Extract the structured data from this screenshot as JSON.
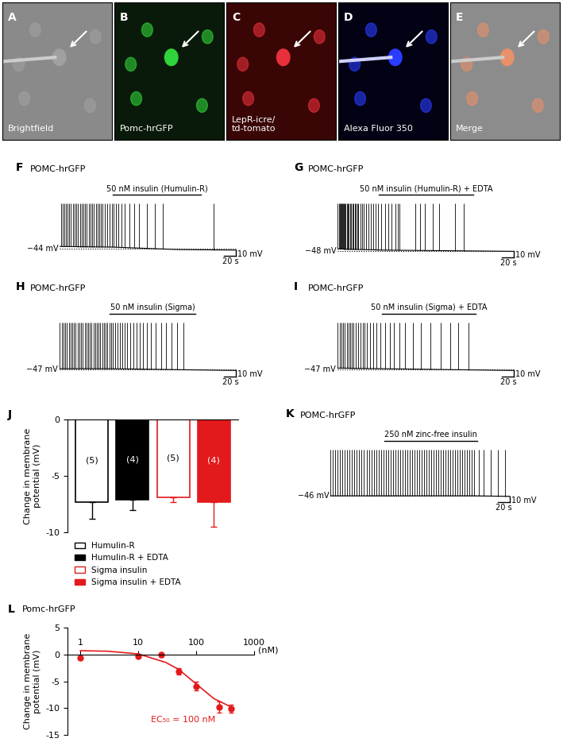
{
  "images": [
    {
      "letter": "A",
      "label": "Brightfield",
      "color": "#8a8a8a",
      "cell_color": "#a0a0a0"
    },
    {
      "letter": "B",
      "label": "Pomc-hrGFP",
      "color": "#0a1a0a",
      "cell_color": "#2fd43a"
    },
    {
      "letter": "C",
      "label": "LepR-icre/\ntd-tomato",
      "color": "#3a0505",
      "cell_color": "#e8303a"
    },
    {
      "letter": "D",
      "label": "Alexa Fluor 350",
      "color": "#020214",
      "cell_color": "#2a3cff"
    },
    {
      "letter": "E",
      "label": "Merge",
      "color": "#8c8c8c",
      "cell_color": "#e8906a"
    }
  ],
  "traces": [
    {
      "letter": "F",
      "title": "POMC-hrGFP",
      "drug": "50 nM insulin (Humulin-R)",
      "drug_on_s": 90,
      "drug_off_s": 240,
      "duration_s": 300,
      "baseline_mv": -44,
      "baseline_label": "−44 mV",
      "v_points": [
        [
          0,
          -41
        ],
        [
          90,
          -42
        ],
        [
          200,
          -46
        ],
        [
          300,
          -47
        ]
      ],
      "spike_peak_mv": 30,
      "spike_times_s": [
        2,
        5,
        8,
        10,
        13,
        16,
        19,
        22,
        25,
        28,
        31,
        34,
        37,
        40,
        43,
        46,
        49,
        52,
        55,
        58,
        61,
        64,
        67,
        70,
        73,
        76,
        80,
        84,
        88,
        92,
        96,
        100,
        105,
        110,
        118,
        126,
        135,
        148,
        162,
        175,
        262
      ],
      "scale_mv": 10,
      "scale_mv_label": "10 mV",
      "scale_s": 20,
      "scale_s_label": "20 s"
    },
    {
      "letter": "G",
      "title": "POMC-hrGFP",
      "drug": "50 nM insulin (Humulin-R) + EDTA",
      "drug_on_s": 70,
      "drug_off_s": 230,
      "duration_s": 300,
      "baseline_mv": -48,
      "baseline_label": "−48 mV",
      "v_points": [
        [
          0,
          -45
        ],
        [
          80,
          -47
        ],
        [
          300,
          -49
        ]
      ],
      "spike_peak_mv": 30,
      "spike_times_s": [
        0,
        1.5,
        3,
        4.5,
        6,
        7.5,
        9,
        10.5,
        12,
        13.5,
        15,
        17,
        19,
        21,
        23,
        25,
        27,
        29,
        31,
        33,
        35,
        38,
        41,
        44,
        48,
        52,
        56,
        60,
        64,
        69,
        74,
        80,
        86,
        92,
        98,
        102,
        105,
        132,
        140,
        148,
        162,
        172,
        200,
        215
      ],
      "scale_mv": 10,
      "scale_mv_label": "10 mV",
      "scale_s": 20,
      "scale_s_label": "20 s"
    },
    {
      "letter": "H",
      "title": "POMC-hrGFP",
      "drug": "50 nM insulin (Sigma)",
      "drug_on_s": 85,
      "drug_off_s": 230,
      "duration_s": 300,
      "baseline_mv": -47,
      "baseline_label": "−47 mV",
      "v_points": [
        [
          0,
          -46
        ],
        [
          90,
          -46
        ],
        [
          300,
          -49
        ]
      ],
      "spike_peak_mv": 30,
      "spike_times_s": [
        0,
        3,
        6,
        9,
        12,
        15,
        18,
        21,
        24,
        27,
        30,
        33,
        36,
        39,
        42,
        45,
        48,
        51,
        54,
        57,
        60,
        63,
        66,
        69,
        72,
        75,
        78,
        81,
        84,
        87,
        90,
        94,
        98,
        102,
        106,
        110,
        115,
        120,
        125,
        130,
        136,
        142,
        148,
        155,
        163,
        172,
        180,
        190,
        200,
        210
      ],
      "scale_mv": 10,
      "scale_mv_label": "10 mV",
      "scale_s": 20,
      "scale_s_label": "20 s"
    },
    {
      "letter": "I",
      "title": "POMC-hrGFP",
      "drug": "50 nM insulin (Sigma) + EDTA",
      "drug_on_s": 75,
      "drug_off_s": 235,
      "duration_s": 300,
      "baseline_mv": -47,
      "baseline_label": "−47 mV",
      "v_points": [
        [
          0,
          -45
        ],
        [
          80,
          -46
        ],
        [
          300,
          -49
        ]
      ],
      "spike_peak_mv": 30,
      "spike_times_s": [
        0,
        3,
        6,
        9,
        12,
        15,
        18,
        21,
        24,
        27,
        30,
        34,
        38,
        42,
        46,
        50,
        55,
        60,
        66,
        72,
        80,
        88,
        96,
        105,
        115,
        128,
        142,
        158,
        175,
        192,
        205,
        222
      ],
      "scale_mv": 10,
      "scale_mv_label": "10 mV",
      "scale_s": 20,
      "scale_s_label": "20 s"
    },
    {
      "letter": "K",
      "title": "POMC-hrGFP",
      "drug": "250 nM zinc-free insulin",
      "drug_on_s": 90,
      "drug_off_s": 245,
      "duration_s": 300,
      "baseline_mv": -46,
      "baseline_label": "−46 mV",
      "v_points": [
        [
          0,
          -46
        ],
        [
          240,
          -46
        ],
        [
          300,
          -47
        ]
      ],
      "spike_peak_mv": 30,
      "spike_times_s": [
        0,
        4,
        8,
        12,
        16,
        20,
        24,
        28,
        32,
        36,
        40,
        44,
        48,
        52,
        56,
        60,
        64,
        68,
        72,
        76,
        80,
        84,
        88,
        92,
        96,
        100,
        104,
        108,
        112,
        116,
        120,
        124,
        128,
        132,
        136,
        140,
        144,
        148,
        152,
        156,
        160,
        164,
        168,
        172,
        176,
        180,
        184,
        188,
        192,
        196,
        200,
        204,
        208,
        212,
        216,
        220,
        224,
        228,
        232,
        236,
        240,
        248,
        256,
        268,
        280,
        292
      ],
      "scale_mv": 10,
      "scale_mv_label": "10 mV",
      "scale_s": 20,
      "scale_s_label": "20 s"
    }
  ],
  "chart_data": [
    {
      "letter": "J",
      "type": "bar",
      "y_label": "Change in membrane\npotential (mV)",
      "ylim": [
        -10,
        0
      ],
      "yticks": [
        -10,
        -5,
        0
      ],
      "legend": "upper left",
      "series": [
        {
          "name": "Humulin-R",
          "color": "#000000",
          "marker": "open",
          "values": [
            -7.3
          ],
          "errors": [
            1.5
          ],
          "n_labels": [
            "(5)"
          ]
        },
        {
          "name": "Humulin-R + EDTA",
          "color": "#000000",
          "marker": "filled",
          "values": [
            -7.1
          ],
          "errors": [
            0.9
          ],
          "n_labels": [
            "(4)"
          ]
        },
        {
          "name": "Sigma insulin",
          "color": "#e31a1c",
          "marker": "open",
          "values": [
            -6.9
          ],
          "errors": [
            0.4
          ],
          "n_labels": [
            "(5)"
          ]
        },
        {
          "name": "Sigma insulin + EDTA",
          "color": "#e31a1c",
          "marker": "filled",
          "values": [
            -7.3
          ],
          "errors": [
            2.2
          ],
          "n_labels": [
            "(4)"
          ]
        }
      ]
    },
    {
      "letter": "L",
      "type": "scatter",
      "title": "Pomc-hrGFP",
      "y_label": "Change in membrane\npotential (mV)",
      "x_label": "(nM)",
      "log": "x",
      "color": "#e31a1c",
      "marker": "o",
      "x": [
        1,
        10,
        25,
        50,
        100,
        250,
        400
      ],
      "values": [
        -0.7,
        -0.3,
        -0.1,
        -3.2,
        -5.9,
        -9.8,
        -10.1
      ],
      "errors": [
        0.2,
        0.3,
        0.4,
        0.6,
        0.8,
        1.0,
        0.8
      ],
      "fit_x": [
        1,
        3,
        10,
        30,
        50,
        100,
        200,
        400
      ],
      "fit_values": [
        0.7,
        0.6,
        0.1,
        -1.5,
        -2.8,
        -5.5,
        -8.2,
        -9.8
      ],
      "annotation": "EC₅₀ = 100 nM",
      "annotation_x": 60,
      "annotation_y": -11.5,
      "xlim": [
        0.6,
        1000
      ],
      "xticks": [
        1,
        10,
        100,
        1000
      ],
      "ylim": [
        -15,
        5
      ],
      "yticks": [
        -15,
        -10,
        -5,
        0,
        5
      ]
    }
  ]
}
